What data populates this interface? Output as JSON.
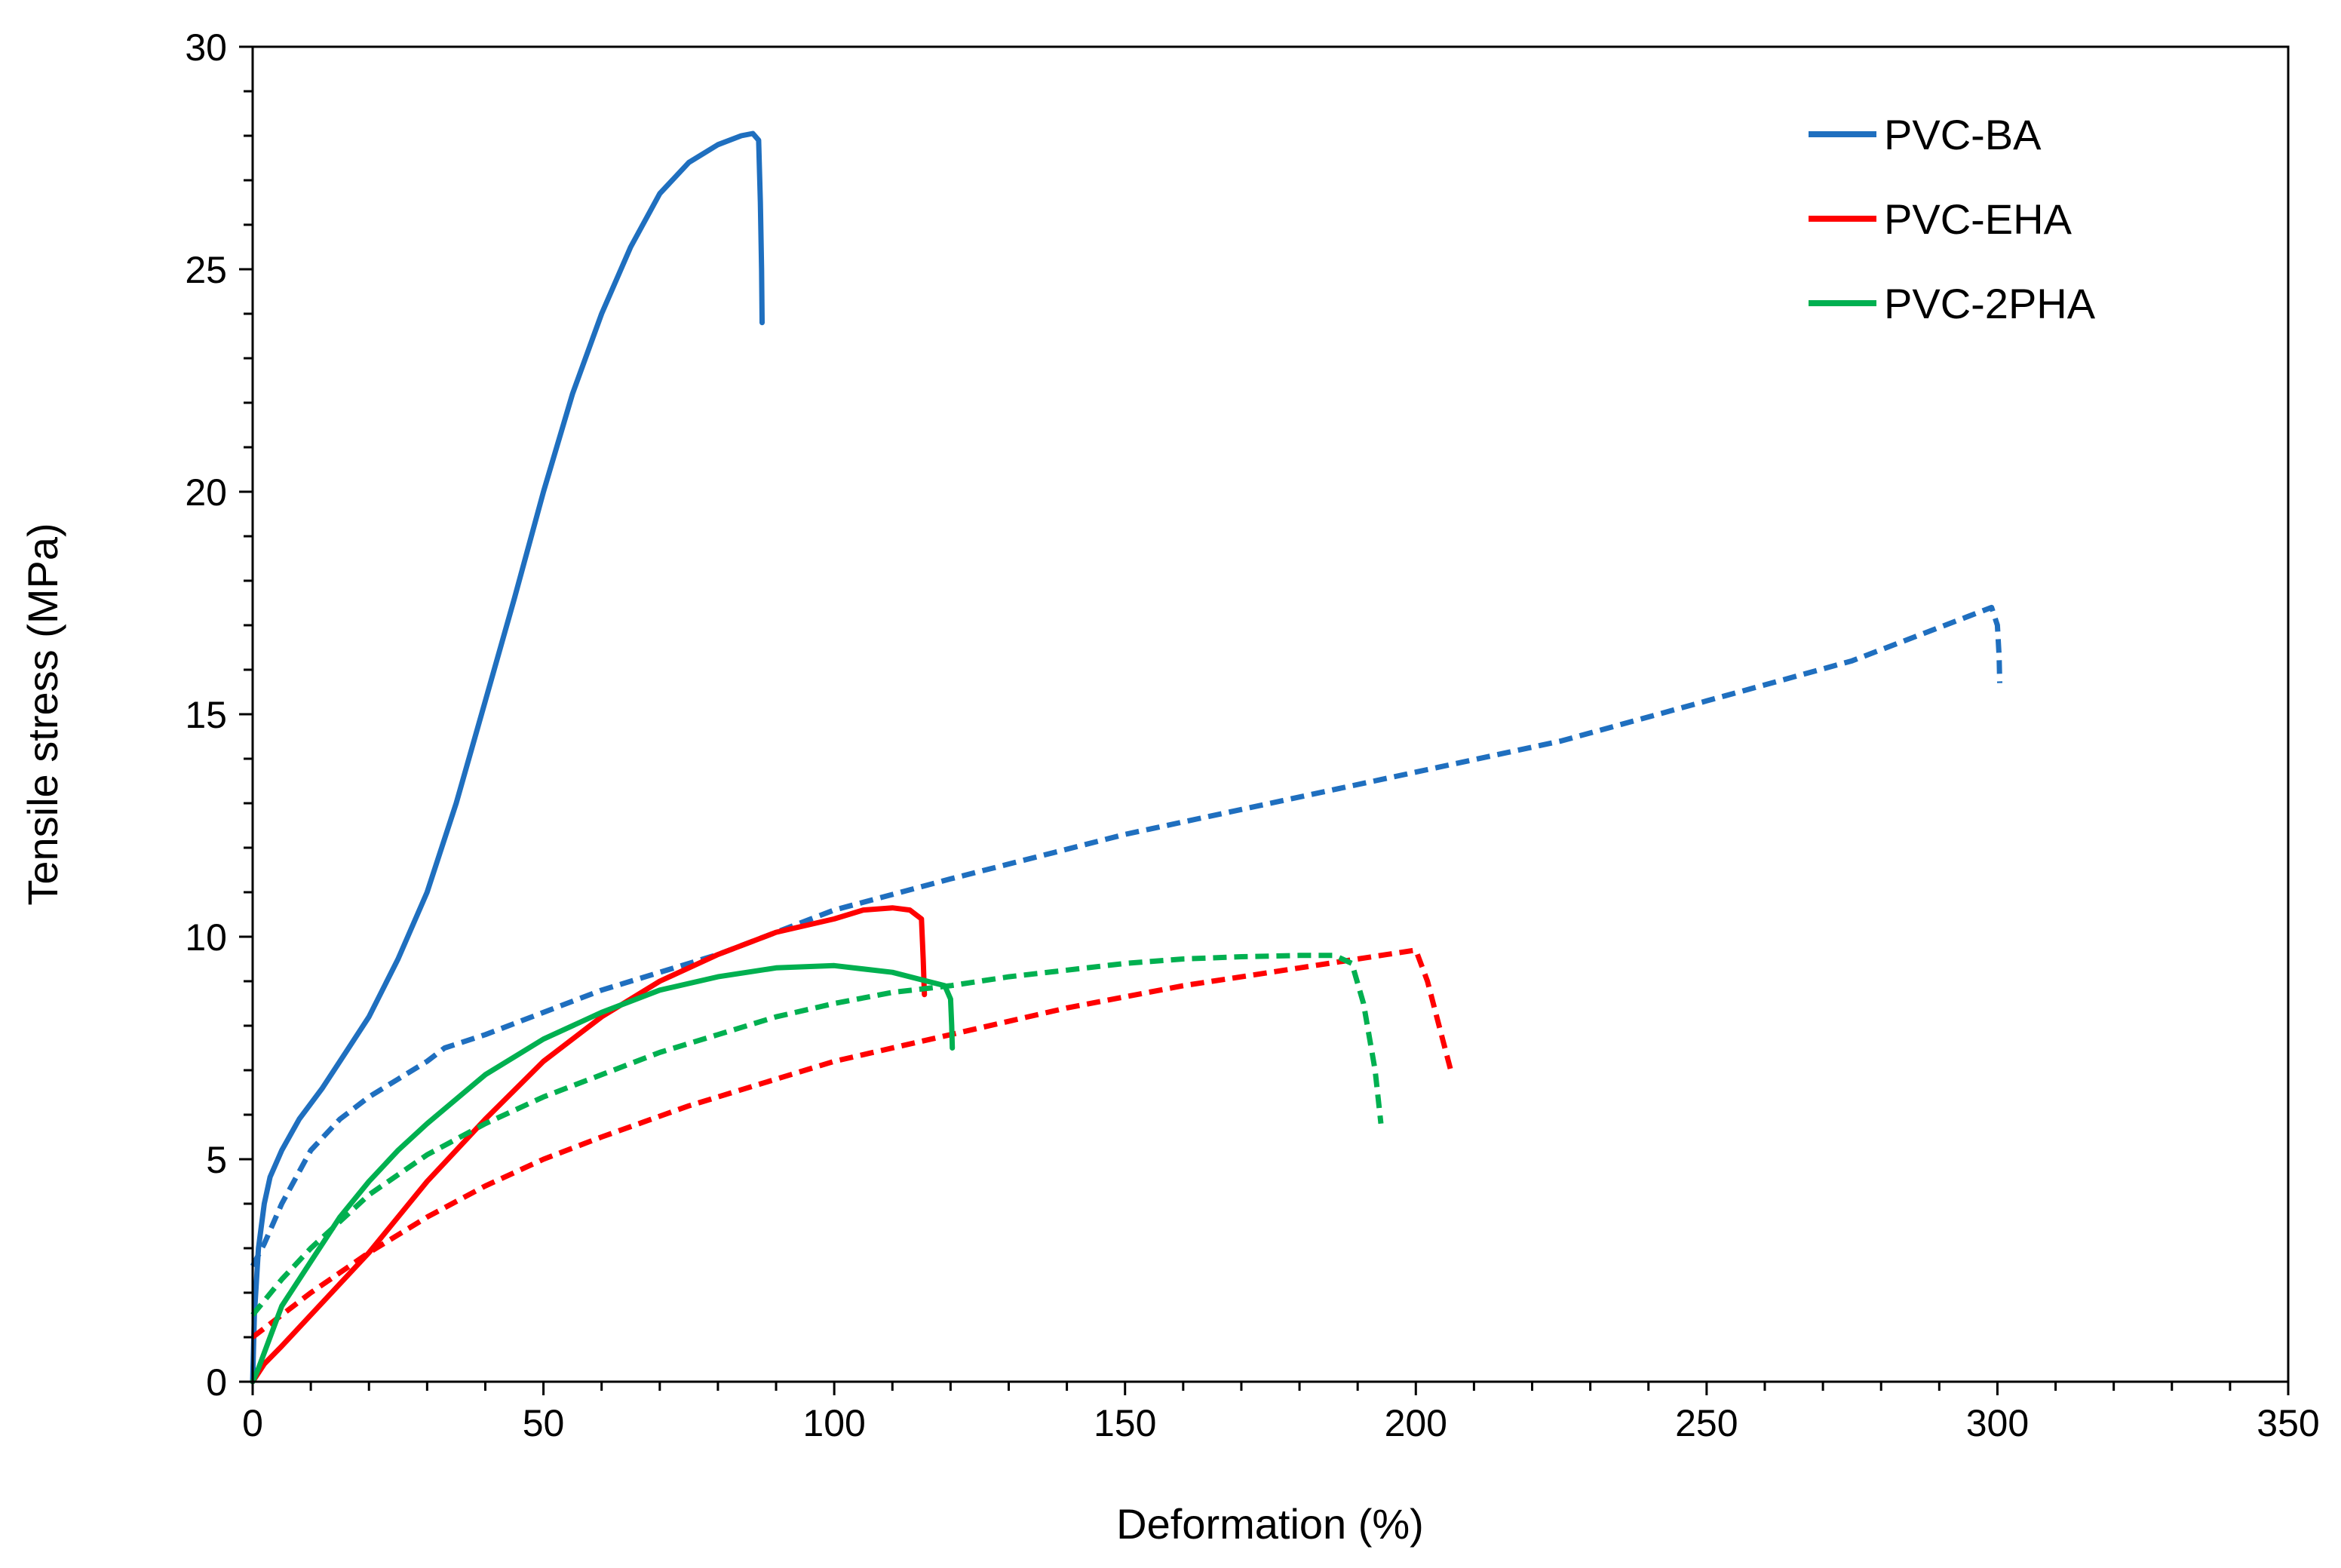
{
  "chart_data": {
    "type": "line",
    "title": "",
    "xlabel": "Deformation (%)",
    "ylabel": "Tensile stress (MPa)",
    "xlim": [
      0,
      350
    ],
    "ylim": [
      0,
      30
    ],
    "x_ticks": [
      "0",
      "50",
      "100",
      "150",
      "200",
      "250",
      "300",
      "350"
    ],
    "y_ticks": [
      "0",
      "5",
      "10",
      "15",
      "20",
      "25",
      "30"
    ],
    "grid": false,
    "legend_position": "top-right",
    "legend": [
      {
        "name": "PVC-BA",
        "color": "#1f6fbf"
      },
      {
        "name": "PVC-EHA",
        "color": "#ff0000"
      },
      {
        "name": "PVC-2PHA",
        "color": "#00b050"
      }
    ],
    "series": [
      {
        "name": "PVC-BA",
        "style": "solid",
        "color": "#1f6fbf",
        "points": [
          [
            0,
            0
          ],
          [
            0.3,
            1.5
          ],
          [
            1,
            3
          ],
          [
            2,
            4
          ],
          [
            3,
            4.6
          ],
          [
            5,
            5.2
          ],
          [
            8,
            5.9
          ],
          [
            12,
            6.6
          ],
          [
            16,
            7.4
          ],
          [
            20,
            8.2
          ],
          [
            25,
            9.5
          ],
          [
            30,
            11
          ],
          [
            35,
            13
          ],
          [
            40,
            15.3
          ],
          [
            45,
            17.6
          ],
          [
            50,
            20
          ],
          [
            55,
            22.2
          ],
          [
            60,
            24
          ],
          [
            65,
            25.5
          ],
          [
            70,
            26.7
          ],
          [
            75,
            27.4
          ],
          [
            80,
            27.8
          ],
          [
            84,
            28
          ],
          [
            86,
            28.05
          ],
          [
            87,
            27.9
          ],
          [
            87.3,
            26.5
          ],
          [
            87.5,
            25
          ],
          [
            87.6,
            23.8
          ]
        ]
      },
      {
        "name": "PVC-BA",
        "style": "dashed",
        "color": "#1f6fbf",
        "points": [
          [
            0,
            2.6
          ],
          [
            2,
            3.1
          ],
          [
            5,
            4
          ],
          [
            10,
            5.2
          ],
          [
            15,
            5.9
          ],
          [
            20,
            6.4
          ],
          [
            25,
            6.8
          ],
          [
            30,
            7.2
          ],
          [
            33,
            7.5
          ],
          [
            40,
            7.8
          ],
          [
            50,
            8.3
          ],
          [
            60,
            8.8
          ],
          [
            80,
            9.6
          ],
          [
            100,
            10.6
          ],
          [
            120,
            11.3
          ],
          [
            150,
            12.3
          ],
          [
            175,
            13
          ],
          [
            200,
            13.7
          ],
          [
            225,
            14.4
          ],
          [
            250,
            15.3
          ],
          [
            275,
            16.2
          ],
          [
            295,
            17.2
          ],
          [
            299,
            17.4
          ],
          [
            300,
            17
          ],
          [
            300.3,
            16.3
          ],
          [
            300.4,
            15.7
          ]
        ]
      },
      {
        "name": "PVC-EHA",
        "style": "solid",
        "color": "#ff0000",
        "points": [
          [
            0,
            0
          ],
          [
            2,
            0.4
          ],
          [
            5,
            0.8
          ],
          [
            10,
            1.5
          ],
          [
            20,
            2.9
          ],
          [
            30,
            4.5
          ],
          [
            40,
            5.9
          ],
          [
            50,
            7.2
          ],
          [
            60,
            8.2
          ],
          [
            70,
            9
          ],
          [
            80,
            9.6
          ],
          [
            90,
            10.1
          ],
          [
            100,
            10.4
          ],
          [
            105,
            10.6
          ],
          [
            110,
            10.65
          ],
          [
            113,
            10.6
          ],
          [
            115,
            10.4
          ],
          [
            115.3,
            9.5
          ],
          [
            115.5,
            8.7
          ]
        ]
      },
      {
        "name": "PVC-EHA",
        "style": "dashed",
        "color": "#ff0000",
        "points": [
          [
            0,
            1
          ],
          [
            5,
            1.5
          ],
          [
            10,
            2
          ],
          [
            20,
            2.9
          ],
          [
            30,
            3.7
          ],
          [
            40,
            4.4
          ],
          [
            50,
            5
          ],
          [
            60,
            5.5
          ],
          [
            75,
            6.2
          ],
          [
            90,
            6.8
          ],
          [
            100,
            7.2
          ],
          [
            120,
            7.8
          ],
          [
            140,
            8.4
          ],
          [
            160,
            8.9
          ],
          [
            180,
            9.3
          ],
          [
            190,
            9.5
          ],
          [
            195,
            9.6
          ],
          [
            200,
            9.7
          ],
          [
            202,
            9
          ],
          [
            204,
            8
          ],
          [
            206,
            7
          ]
        ]
      },
      {
        "name": "PVC-2PHA",
        "style": "solid",
        "color": "#00b050",
        "points": [
          [
            0,
            0
          ],
          [
            1,
            0.3
          ],
          [
            3,
            1
          ],
          [
            5,
            1.7
          ],
          [
            10,
            2.7
          ],
          [
            15,
            3.7
          ],
          [
            20,
            4.5
          ],
          [
            25,
            5.2
          ],
          [
            30,
            5.8
          ],
          [
            40,
            6.9
          ],
          [
            50,
            7.7
          ],
          [
            60,
            8.3
          ],
          [
            70,
            8.8
          ],
          [
            80,
            9.1
          ],
          [
            90,
            9.3
          ],
          [
            100,
            9.35
          ],
          [
            110,
            9.2
          ],
          [
            116,
            9
          ],
          [
            119,
            8.9
          ],
          [
            120,
            8.6
          ],
          [
            120.2,
            8
          ],
          [
            120.3,
            7.5
          ]
        ]
      },
      {
        "name": "PVC-2PHA",
        "style": "dashed",
        "color": "#00b050",
        "points": [
          [
            0,
            1.5
          ],
          [
            5,
            2.3
          ],
          [
            10,
            3
          ],
          [
            20,
            4.2
          ],
          [
            30,
            5.1
          ],
          [
            40,
            5.8
          ],
          [
            50,
            6.4
          ],
          [
            60,
            6.9
          ],
          [
            70,
            7.4
          ],
          [
            80,
            7.8
          ],
          [
            90,
            8.2
          ],
          [
            100,
            8.5
          ],
          [
            110,
            8.75
          ],
          [
            120,
            8.9
          ],
          [
            130,
            9.1
          ],
          [
            140,
            9.25
          ],
          [
            150,
            9.4
          ],
          [
            160,
            9.5
          ],
          [
            170,
            9.55
          ],
          [
            180,
            9.58
          ],
          [
            186,
            9.58
          ],
          [
            189,
            9.4
          ],
          [
            191,
            8.5
          ],
          [
            193,
            7
          ],
          [
            194,
            5.8
          ]
        ]
      }
    ]
  }
}
